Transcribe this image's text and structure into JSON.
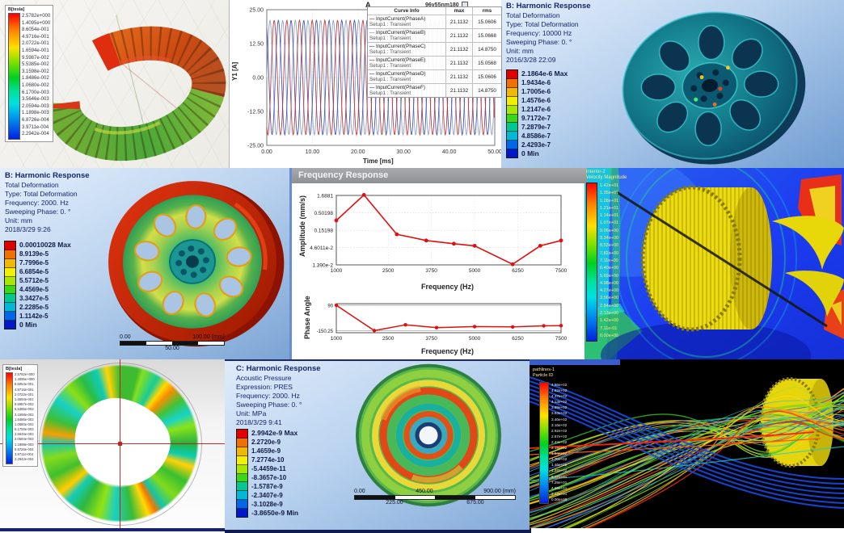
{
  "panels": {
    "torus": {
      "legend_title": "B[tesla]",
      "legend_values": [
        "2.5782e+000",
        "1.4095e+000",
        "8.6054e-001",
        "4.9716e-001",
        "2.0722e-001",
        "1.6594e-001",
        "9.5987e-002",
        "5.5385e-002",
        "3.1598e-002",
        "1.8486e-002",
        "1.0680e-002",
        "6.1700e-003",
        "3.5646e-003",
        "2.0594e-003",
        "1.1898e-003",
        "6.8726e-004",
        "3.9711e-004",
        "2.2942e-004"
      ]
    },
    "harmonic_top_right": {
      "header": "B: Harmonic Response",
      "lines": [
        "Total Deformation",
        "Type: Total Deformation",
        "Frequency: 10000 Hz",
        "Sweeping Phase: 0. °",
        "Unit: mm",
        "2016/3/28 22:09"
      ],
      "legend_max": "2.1864e-6 Max",
      "legend_mid": [
        "1.9434e-6",
        "1.7005e-6",
        "1.4576e-6",
        "1.2147e-6",
        "9.7172e-7",
        "7.2879e-7",
        "4.8586e-7",
        "2.4293e-7"
      ],
      "legend_min": "0 Min"
    },
    "harmonic_mid_left": {
      "header": "B: Harmonic Response",
      "lines": [
        "Total Deformation",
        "Type: Total Deformation",
        "Frequency: 2000. Hz",
        "Sweeping Phase: 0. °",
        "Unit: mm",
        "2018/3/29 9:26"
      ],
      "legend_max": "0.00010028 Max",
      "legend_mid": [
        "8.9139e-5",
        "7.7996e-5",
        "6.6854e-5",
        "5.5712e-5",
        "4.4569e-5",
        "3.3427e-5",
        "2.2285e-5",
        "1.1142e-5"
      ],
      "legend_min": "0 Min",
      "scale": {
        "left": "0.00",
        "right": "100.00 (mm)",
        "center": "50.00"
      }
    },
    "frequency_response": {
      "title": "Frequency Response"
    },
    "velocity": {
      "title_line1": "interior-2",
      "title_line2": "Velocity Magnitude",
      "values": [
        "1.42e+01",
        "1.35e+01",
        "1.28e+01",
        "1.21e+01",
        "1.14e+01",
        "1.07e+01",
        "9.96e+00",
        "9.24e+00",
        "8.53e+00",
        "7.82e+00",
        "7.11e+00",
        "6.40e+00",
        "5.69e+00",
        "4.98e+00",
        "4.27e+00",
        "3.56e+00",
        "2.84e+00",
        "2.13e+00",
        "1.42e+00",
        "7.11e-01",
        "0.00e+00"
      ]
    },
    "rotor": {
      "legend_title": "B[tesla]",
      "legend_values": [
        "2.5782e+000",
        "1.4095e+000",
        "8.6054e-001",
        "4.9716e-001",
        "2.0722e-001",
        "1.6594e-001",
        "9.5987e-002",
        "5.5385e-002",
        "3.1598e-002",
        "1.8486e-002",
        "1.0680e-002",
        "6.1700e-003",
        "3.5646e-003",
        "2.0594e-003",
        "1.1898e-003",
        "6.8726e-004",
        "3.9711e-004",
        "2.2942e-004"
      ]
    },
    "acoustic": {
      "header": "C: Harmonic Response",
      "lines": [
        "Acoustic Pressure",
        "Expression: PRES",
        "Frequency: 2000. Hz",
        "Sweeping Phase: 0. °",
        "Unit: MPa",
        "2018/3/29 9:41"
      ],
      "legend_max": "2.9942e-9 Max",
      "legend_mid": [
        "2.2720e-9",
        "1.4659e-9",
        "7.2774e-10",
        "-5.4459e-11",
        "-8.3657e-10",
        "-1.5787e-9",
        "-2.3407e-9",
        "-3.1028e-9"
      ],
      "legend_min": "-3.8650e-9 Min",
      "scale": {
        "left": "0.00",
        "center": "450.00",
        "right": "900.00 (mm)",
        "q1": "225.00",
        "q3": "675.00"
      }
    },
    "pathlines": {
      "title_line1": "pathlines-1",
      "title_line2": "Particle ID",
      "values": [
        "4.86e+02",
        "4.62e+02",
        "4.37e+02",
        "4.13e+02",
        "3.89e+02",
        "3.64e+02",
        "3.40e+02",
        "3.16e+02",
        "2.92e+02",
        "2.67e+02",
        "2.43e+02",
        "2.19e+02",
        "1.94e+02",
        "1.70e+02",
        "1.46e+02",
        "1.22e+02",
        "9.72e+01",
        "7.29e+01",
        "4.86e+01",
        "2.43e+01",
        "0.00e+00"
      ]
    }
  },
  "chart_data": [
    {
      "type": "line",
      "title": "A",
      "window_label": "96v55nm180",
      "xlabel": "Time [ms]",
      "ylabel": "Y1 [A]",
      "xlim": [
        0,
        50
      ],
      "ylim": [
        -25,
        25
      ],
      "xticks": [
        "0.00",
        "10.00",
        "20.00",
        "30.00",
        "40.00",
        "50.00"
      ],
      "yticks": [
        "25.00",
        "12.50",
        "0.00",
        "-12.50",
        "-25.00"
      ],
      "waveform": {
        "amplitude": 21.1132,
        "period_ms": 2.78,
        "phase_offsets_deg": [
          0,
          120,
          240
        ],
        "colors": [
          "#8b9ac4",
          "#3a50b0",
          "#c23030"
        ]
      },
      "legend_table": {
        "headers": [
          "Curve Info",
          "max",
          "rms"
        ],
        "rows": [
          {
            "label": "InputCurrent(PhaseA)",
            "sub": "Setup1 : Transient",
            "max": "21.1132",
            "rms": "15.0606",
            "color": "#c23030"
          },
          {
            "label": "InputCurrent(PhaseB)",
            "sub": "Setup1 : Transient",
            "max": "21.1132",
            "rms": "15.0668",
            "color": "#8b9ac4"
          },
          {
            "label": "InputCurrent(PhaseC)",
            "sub": "Setup1 : Transient",
            "max": "21.1132",
            "rms": "14.8750",
            "color": "#3a50b0"
          },
          {
            "label": "InputCurrent(PhaseE)",
            "sub": "Setup1 : Transient",
            "max": "21.1132",
            "rms": "15.0568",
            "color": "#c23030"
          },
          {
            "label": "InputCurrent(PhaseD)",
            "sub": "Setup1 : Transient",
            "max": "21.1132",
            "rms": "15.0606",
            "color": "#46558e"
          },
          {
            "label": "InputCurrent(PhaseF)",
            "sub": "Setup1 : Transient",
            "max": "21.1132",
            "rms": "14.8750",
            "color": "#3a50b0"
          }
        ]
      }
    },
    {
      "type": "line",
      "xlabel": "Frequency (Hz)",
      "ylabel": "Amplitude (mm/s)",
      "x": [
        1000,
        1800,
        2750,
        3600,
        4400,
        5000,
        6100,
        6900,
        7500
      ],
      "y": [
        0.3,
        1.75,
        0.115,
        0.075,
        0.06,
        0.052,
        0.0145,
        0.052,
        0.075
      ],
      "yscale": "log",
      "yticks": [
        "1.6881",
        "0.50198",
        "0.15198",
        "4.6011e-2",
        "1.390e-2"
      ],
      "ytick_values": [
        1.6881,
        0.50198,
        0.15198,
        0.046011,
        0.0139
      ],
      "xticks": [
        "1000",
        "2500",
        "3750",
        "5000",
        "6250",
        "7500"
      ],
      "xtick_values": [
        1000,
        2500,
        3750,
        5000,
        6250,
        7500
      ],
      "xlim": [
        1000,
        7500
      ],
      "color": "#e01010"
    },
    {
      "type": "line",
      "xlabel": "Frequency (Hz)",
      "ylabel": "Phase Angle",
      "x": [
        1000,
        2100,
        3000,
        3900,
        5000,
        6100,
        7000,
        7500
      ],
      "y": [
        90,
        -150,
        -95,
        -122,
        -112,
        -115,
        -105,
        -103
      ],
      "yticks": [
        "90",
        "-150.25"
      ],
      "ytick_values": [
        90,
        -150.25
      ],
      "ylim": [
        -170,
        105
      ],
      "xticks": [
        "1000",
        "2500",
        "3750",
        "5000",
        "6250",
        "7500"
      ],
      "xtick_values": [
        1000,
        2500,
        3750,
        5000,
        6250,
        7500
      ],
      "xlim": [
        1000,
        7500
      ],
      "color": "#e01010"
    }
  ]
}
